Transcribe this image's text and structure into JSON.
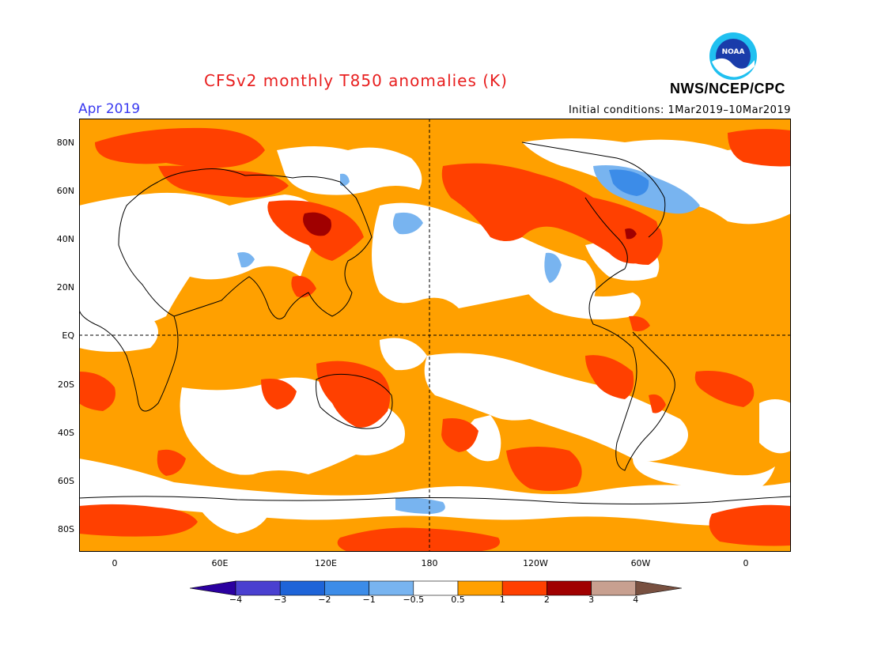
{
  "title": "CFSv2 monthly T850 anomalies (K)",
  "month": "Apr 2019",
  "initial_conditions": "Initial conditions: 1Mar2019–10Mar2019",
  "agency": "NWS/NCEP/CPC",
  "logo_text": "NOAA",
  "lat_labels": [
    "80N",
    "60N",
    "40N",
    "20N",
    "EQ",
    "20S",
    "40S",
    "60S",
    "80S"
  ],
  "lon_labels": [
    "0",
    "60E",
    "120E",
    "180",
    "120W",
    "60W",
    "0"
  ],
  "colorbar": {
    "tick_labels": [
      "−4",
      "−3",
      "−2",
      "−1",
      "−0.5",
      "0.5",
      "1",
      "2",
      "3",
      "4"
    ],
    "colors": [
      "#2b00a0",
      "#4a40d0",
      "#1e64d8",
      "#3c8ce8",
      "#78b4f0",
      "#ffffff",
      "#ffa000",
      "#ff4000",
      "#a00000",
      "#c8a090",
      "#785040"
    ]
  },
  "colors": {
    "c05": "#ffa000",
    "c1": "#ff4000",
    "c2": "#a00000",
    "neg05": "#78b4f0",
    "neg1": "#3c8ce8"
  }
}
